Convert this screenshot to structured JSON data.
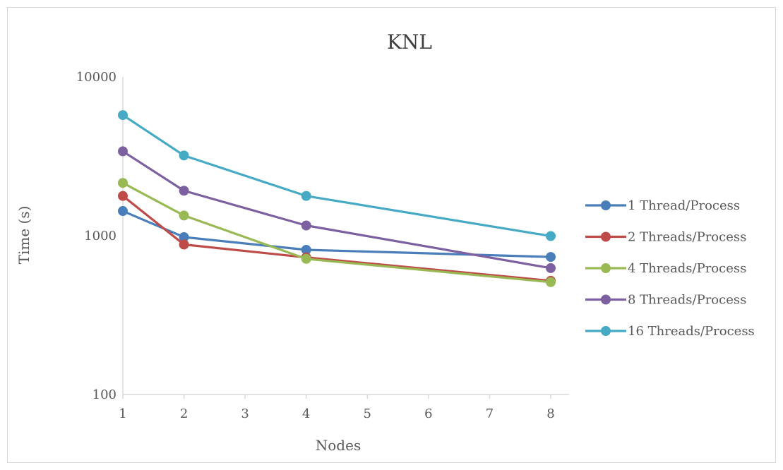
{
  "chart_data": {
    "type": "line",
    "title": "KNL",
    "xlabel": "Nodes",
    "ylabel": "Time (s)",
    "x": [
      1,
      2,
      4,
      8
    ],
    "xlim": [
      1,
      8
    ],
    "xticks": [
      "1",
      "2",
      "3",
      "4",
      "5",
      "6",
      "7",
      "8"
    ],
    "ylim": [
      100,
      10000
    ],
    "yscale": "log",
    "yticks": [
      "100",
      "1000",
      "10000"
    ],
    "grid": false,
    "legend_position": "right",
    "series": [
      {
        "name": "1 Thread/Process",
        "color": "#4a7ebb",
        "values": [
          1430,
          980,
          815,
          735
        ]
      },
      {
        "name": "2 Threads/Process",
        "color": "#be4b48",
        "values": [
          1780,
          880,
          730,
          520
        ]
      },
      {
        "name": "4 Threads/Process",
        "color": "#98b954",
        "values": [
          2150,
          1340,
          715,
          510
        ]
      },
      {
        "name": "8 Threads/Process",
        "color": "#7d60a0",
        "values": [
          3400,
          1920,
          1160,
          625
        ]
      },
      {
        "name": "16 Threads/Process",
        "color": "#46aac5",
        "values": [
          5750,
          3200,
          1780,
          995
        ]
      }
    ]
  }
}
